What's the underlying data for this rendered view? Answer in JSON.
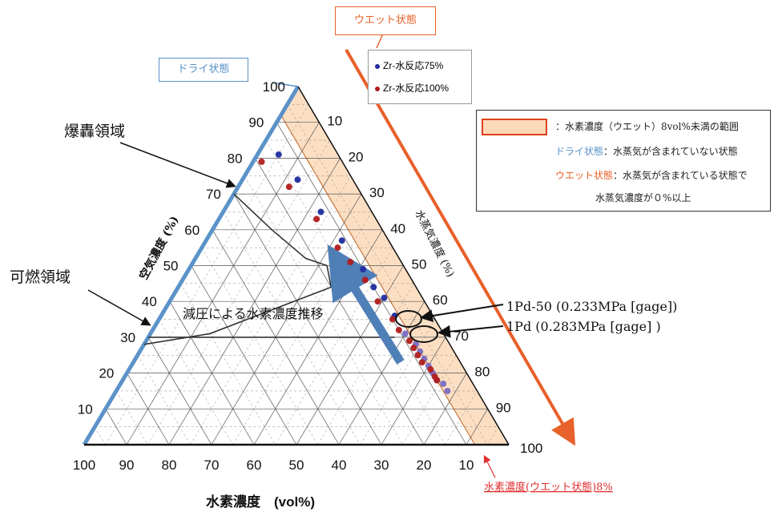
{
  "chart_data": {
    "type": "scatter",
    "subtype": "ternary",
    "axes": {
      "bottom_label": "水素濃度　(vol%)",
      "left_label": "空気濃度 (%)",
      "right_label": "水蒸気濃度 (%)",
      "bottom_ticks": [
        "100",
        "90",
        "80",
        "70",
        "60",
        "50",
        "40",
        "30",
        "20",
        "10"
      ],
      "left_ticks": [
        "10",
        "20",
        "30",
        "40",
        "50",
        "60",
        "70",
        "80",
        "90",
        "100"
      ],
      "right_ticks": [
        "10",
        "20",
        "30",
        "40",
        "50",
        "60",
        "70",
        "80",
        "90",
        "100"
      ],
      "range": [
        0,
        100
      ],
      "grid": true
    },
    "series": [
      {
        "name": "Zr-水反応75%",
        "color": "#1f2d9e",
        "points": [
          [
            14,
            81,
            5
          ],
          [
            13,
            74,
            13
          ],
          [
            12,
            65,
            23
          ],
          [
            11,
            57,
            32
          ],
          [
            10,
            49,
            41
          ],
          [
            10,
            44,
            46
          ],
          [
            9,
            41,
            50
          ],
          [
            9,
            36,
            55
          ],
          [
            9,
            31,
            60
          ],
          [
            8,
            28,
            64
          ],
          [
            8,
            26,
            66
          ],
          [
            8,
            24,
            68
          ],
          [
            8,
            22,
            70
          ],
          [
            8,
            20,
            72
          ],
          [
            8,
            18,
            74
          ],
          [
            7,
            17,
            76
          ],
          [
            7,
            15,
            78
          ]
        ]
      },
      {
        "name": "Zr-水反応100%",
        "color": "#b01c1c",
        "points": [
          [
            19,
            79,
            2
          ],
          [
            16,
            72,
            12
          ],
          [
            14,
            63,
            23
          ],
          [
            13,
            55,
            32
          ],
          [
            12,
            51,
            37
          ],
          [
            11,
            46,
            43
          ],
          [
            11,
            40,
            49
          ],
          [
            10,
            35,
            55
          ],
          [
            10,
            32,
            58
          ],
          [
            9,
            29,
            62
          ],
          [
            9,
            27,
            64
          ],
          [
            9,
            25,
            66
          ],
          [
            9,
            23,
            68
          ],
          [
            8,
            21,
            71
          ],
          [
            8,
            19,
            73
          ],
          [
            8,
            18,
            74
          ]
        ]
      }
    ],
    "regions": [
      {
        "name": "爆轟領域",
        "boundary_air": 50
      },
      {
        "name": "可燃領域",
        "boundary_air": 32
      }
    ],
    "annotations": {
      "detonation": "爆轟領域",
      "flammable": "可燃領域",
      "depressurize": "減圧による水素濃度推移",
      "pd50": "1Pd-50 (0.233MPa [gage])",
      "pd": "1Pd (0.283MPa [gage] )",
      "h2_wet8": "水素濃度(ウエット状態)8%"
    },
    "callouts": {
      "dry": "ドライ状態",
      "wet": "ウエット状態"
    },
    "legend": {
      "row1": "：水素濃度（ウエット）8vol%未満の範囲",
      "row2_key": "ドライ状態",
      "row2_text": "：水蒸気が含まれていない状態",
      "row3_key": "ウエット状態",
      "row3_text": "：水蒸気が含まれている状態で",
      "row4_text": "水蒸気濃度が０%以上"
    },
    "colors": {
      "dry_blue": "#5b92c9",
      "wet_orange": "#e8602a",
      "band_fill": "#fcd9b8",
      "arrow_blue": "#4f7fb7"
    }
  }
}
